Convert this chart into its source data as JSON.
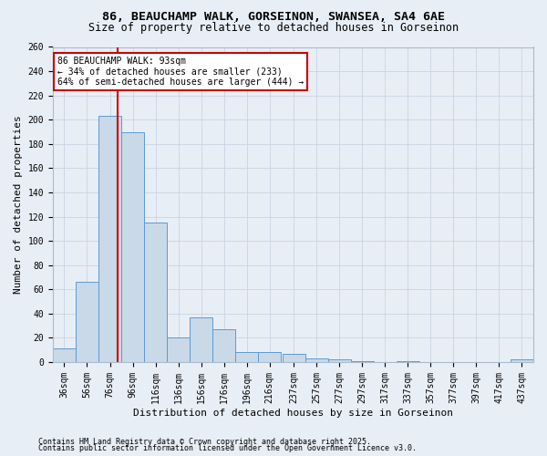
{
  "title1": "86, BEAUCHAMP WALK, GORSEINON, SWANSEA, SA4 6AE",
  "title2": "Size of property relative to detached houses in Gorseinon",
  "xlabel": "Distribution of detached houses by size in Gorseinon",
  "ylabel": "Number of detached properties",
  "footer1": "Contains HM Land Registry data © Crown copyright and database right 2025.",
  "footer2": "Contains public sector information licensed under the Open Government Licence v3.0.",
  "bar_left_edges": [
    36,
    56,
    76,
    96,
    116,
    136,
    156,
    176,
    196,
    216,
    237,
    257,
    277,
    297,
    317,
    337,
    357,
    377,
    397,
    417,
    437
  ],
  "bar_widths": [
    20,
    20,
    20,
    20,
    20,
    20,
    20,
    20,
    20,
    20,
    20,
    20,
    20,
    20,
    20,
    20,
    20,
    20,
    20,
    20,
    20
  ],
  "bar_heights": [
    11,
    66,
    203,
    190,
    115,
    20,
    37,
    27,
    8,
    8,
    7,
    3,
    2,
    1,
    0,
    1,
    0,
    0,
    0,
    0,
    2
  ],
  "bar_facecolor": "#c9d9e8",
  "bar_edgecolor": "#5b9bd5",
  "grid_color": "#c8d4e3",
  "property_x": 93,
  "annotation_line1": "86 BEAUCHAMP WALK: 93sqm",
  "annotation_line2": "← 34% of detached houses are smaller (233)",
  "annotation_line3": "64% of semi-detached houses are larger (444) →",
  "annotation_box_facecolor": "#ffffff",
  "annotation_box_edgecolor": "#cc0000",
  "vline_color": "#cc0000",
  "ylim": [
    0,
    260
  ],
  "yticks": [
    0,
    20,
    40,
    60,
    80,
    100,
    120,
    140,
    160,
    180,
    200,
    220,
    240,
    260
  ],
  "xlim_left": 36,
  "xlim_right": 457,
  "background_color": "#e8eef5",
  "axes_bg_color": "#e8eef5",
  "title1_fontsize": 9.5,
  "title2_fontsize": 8.5,
  "tick_labelsize": 7,
  "axis_labelsize": 8,
  "annotation_fontsize": 7,
  "footer_fontsize": 6
}
